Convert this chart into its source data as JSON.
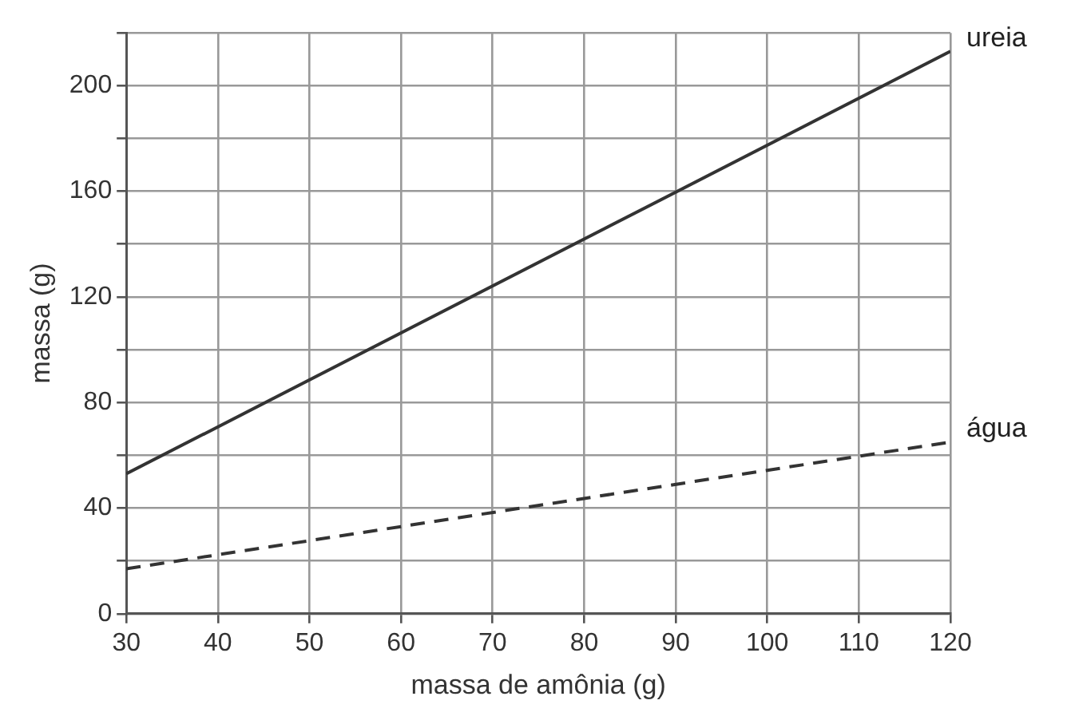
{
  "chart_data": {
    "type": "line",
    "xlabel": "massa de amônia (g)",
    "ylabel": "massa (g)",
    "x": [
      30,
      120
    ],
    "series": [
      {
        "name": "ureia",
        "color": "#333333",
        "values": [
          53,
          213
        ],
        "line_style": "solid"
      },
      {
        "name": "água",
        "color": "#333333",
        "values": [
          17,
          65
        ],
        "line_style": "dashed"
      }
    ],
    "xlim": [
      30,
      120
    ],
    "xticks": [
      30,
      40,
      50,
      60,
      70,
      80,
      90,
      100,
      110,
      120
    ],
    "ylim": [
      0,
      220
    ],
    "yticks": [
      0,
      {
        "value": 20,
        "label": null
      },
      40,
      {
        "value": 60,
        "label": null
      },
      80,
      {
        "value": 100,
        "label": null
      },
      120,
      {
        "value": 140,
        "label": null
      },
      160,
      {
        "value": 180,
        "label": null
      },
      200,
      {
        "value": 220,
        "label": null
      }
    ],
    "grid": true,
    "legend": false,
    "marker": "none"
  }
}
